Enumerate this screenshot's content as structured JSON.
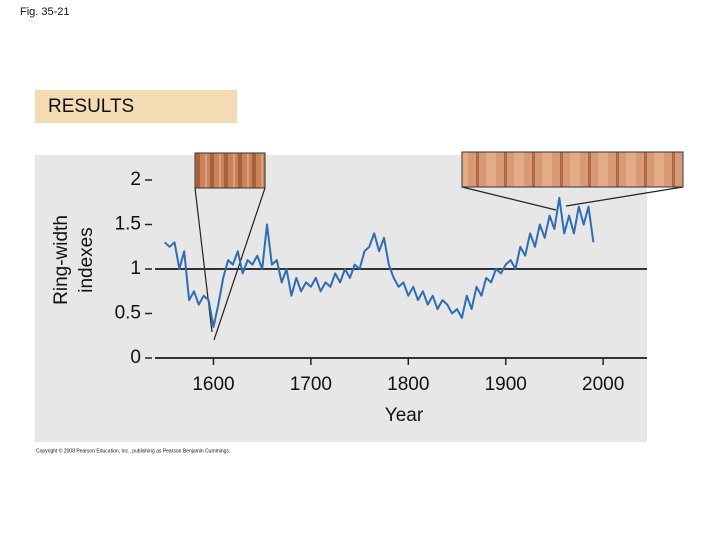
{
  "figure_label": "Fig. 35-21",
  "panel_label": "RESULTS",
  "copyright": "Copyright © 2008 Pearson Education, Inc., publishing as Pearson Benjamin Cummings.",
  "chart_data": {
    "type": "line",
    "ylabel": [
      "Ring-width",
      "indexes"
    ],
    "xlabel": "Year",
    "color": "#2f6db3",
    "reference_line": 1,
    "xlim": [
      1540,
      2045
    ],
    "ylim": [
      0,
      2
    ],
    "xticks": [
      1600,
      1700,
      1800,
      1900,
      2000
    ],
    "yticks": [
      0,
      0.5,
      1,
      1.5,
      2
    ],
    "x": [
      1550,
      1555,
      1560,
      1565,
      1570,
      1575,
      1580,
      1585,
      1590,
      1595,
      1600,
      1605,
      1610,
      1615,
      1620,
      1625,
      1630,
      1635,
      1640,
      1645,
      1650,
      1655,
      1660,
      1665,
      1670,
      1675,
      1680,
      1685,
      1690,
      1695,
      1700,
      1705,
      1710,
      1715,
      1720,
      1725,
      1730,
      1735,
      1740,
      1745,
      1750,
      1755,
      1760,
      1765,
      1770,
      1775,
      1780,
      1785,
      1790,
      1795,
      1800,
      1805,
      1810,
      1815,
      1820,
      1825,
      1830,
      1835,
      1840,
      1845,
      1850,
      1855,
      1860,
      1865,
      1870,
      1875,
      1880,
      1885,
      1890,
      1895,
      1900,
      1905,
      1910,
      1915,
      1920,
      1925,
      1930,
      1935,
      1940,
      1945,
      1950,
      1955,
      1960,
      1965,
      1970,
      1975,
      1980,
      1985,
      1990
    ],
    "values": [
      1.3,
      1.25,
      1.3,
      1.0,
      1.2,
      0.65,
      0.75,
      0.6,
      0.7,
      0.65,
      0.35,
      0.6,
      0.9,
      1.1,
      1.05,
      1.2,
      0.95,
      1.1,
      1.05,
      1.15,
      1.0,
      1.5,
      1.05,
      1.1,
      0.85,
      1.0,
      0.7,
      0.9,
      0.75,
      0.85,
      0.8,
      0.9,
      0.75,
      0.85,
      0.8,
      0.95,
      0.85,
      1.0,
      0.9,
      1.05,
      1.0,
      1.2,
      1.25,
      1.4,
      1.2,
      1.35,
      1.05,
      0.9,
      0.8,
      0.85,
      0.7,
      0.8,
      0.65,
      0.75,
      0.6,
      0.7,
      0.55,
      0.65,
      0.6,
      0.5,
      0.55,
      0.45,
      0.7,
      0.55,
      0.8,
      0.7,
      0.9,
      0.85,
      1.0,
      0.95,
      1.05,
      1.1,
      1.0,
      1.25,
      1.15,
      1.4,
      1.25,
      1.5,
      1.35,
      1.6,
      1.45,
      1.8,
      1.4,
      1.6,
      1.4,
      1.7,
      1.5,
      1.7,
      1.3
    ]
  }
}
